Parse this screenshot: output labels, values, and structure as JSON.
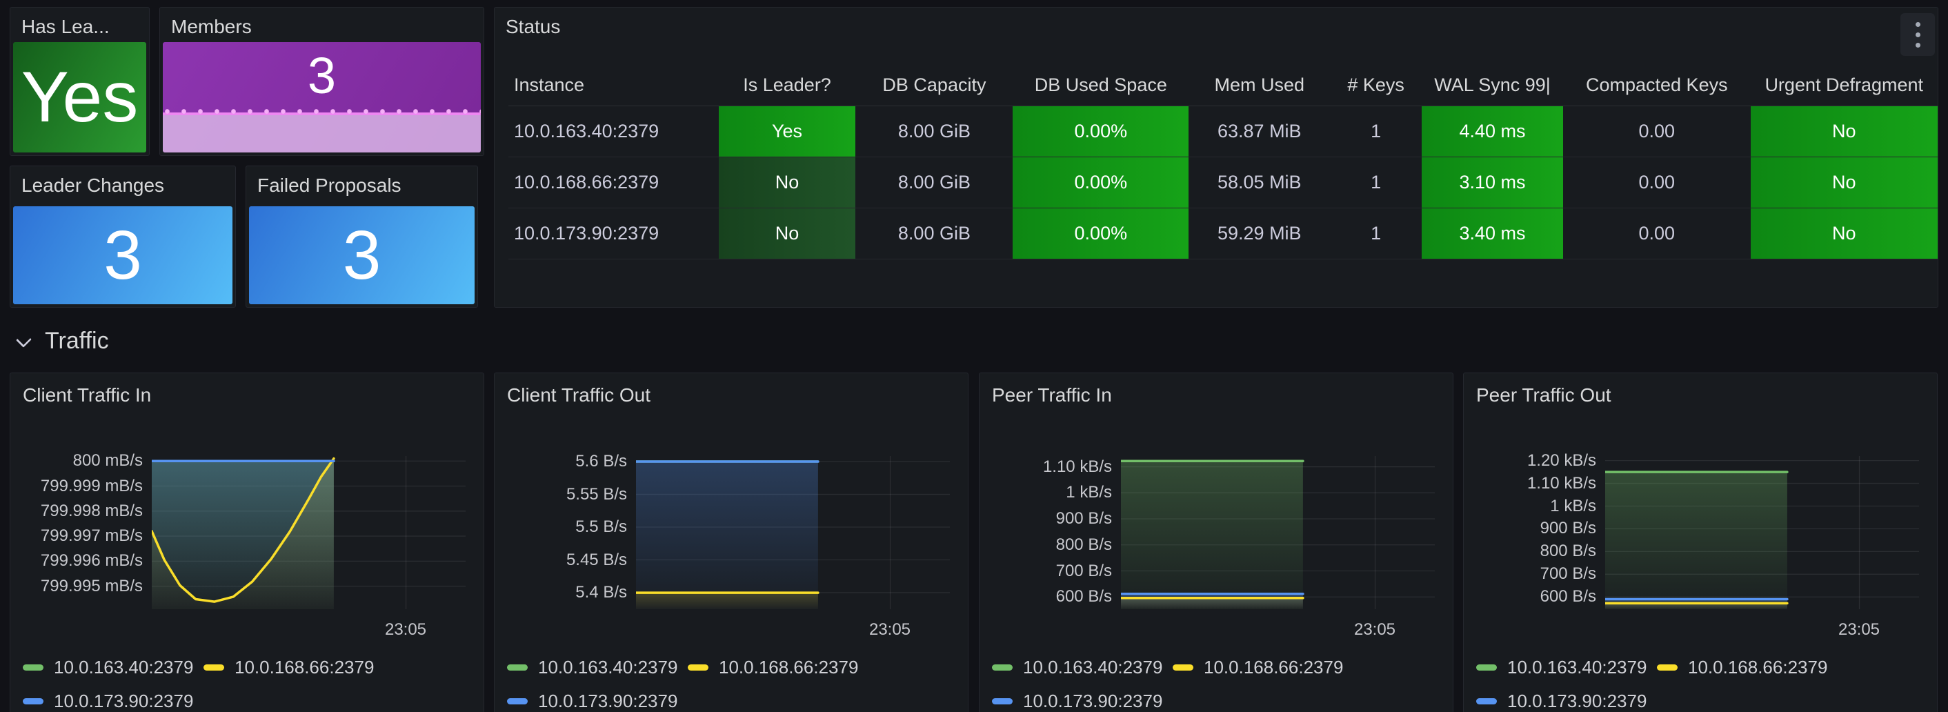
{
  "palette": {
    "series_green": "#73bf69",
    "series_yellow": "#fade2a",
    "series_blue": "#5794f2",
    "cell_bright_from": "#0d8713",
    "cell_bright_to": "#16a318",
    "cell_dark_from": "#17421e",
    "cell_dark_to": "#205428",
    "stat_green": "#2b9c31",
    "stat_blue": "#3c95e8",
    "stat_purple": "#8d35b0",
    "grid": "rgba(204,204,220,0.10)"
  },
  "panels": {
    "has_leader": {
      "title": "Has Lea...",
      "value": "Yes"
    },
    "members": {
      "title": "Members",
      "value": "3"
    },
    "leader_changes": {
      "title": "Leader Changes",
      "value": "3"
    },
    "failed_proposals": {
      "title": "Failed Proposals",
      "value": "3"
    },
    "status": {
      "title": "Status",
      "menu_icon": "kebab-menu-icon",
      "columns": [
        "Instance",
        "Is Leader?",
        "DB Capacity",
        "DB Used Space",
        "Mem Used",
        "# Keys",
        "WAL Sync 99|",
        "Compacted Keys",
        "Urgent Defragment"
      ],
      "rows": [
        [
          {
            "t": "10.0.163.40:2379"
          },
          {
            "t": "Yes",
            "bg": "bright"
          },
          {
            "t": "8.00 GiB"
          },
          {
            "t": "0.00%",
            "bg": "bright"
          },
          {
            "t": "63.87 MiB"
          },
          {
            "t": "1"
          },
          {
            "t": "4.40 ms",
            "bg": "bright"
          },
          {
            "t": "0.00"
          },
          {
            "t": "No",
            "bg": "bright"
          }
        ],
        [
          {
            "t": "10.0.168.66:2379"
          },
          {
            "t": "No",
            "bg": "dark"
          },
          {
            "t": "8.00 GiB"
          },
          {
            "t": "0.00%",
            "bg": "bright"
          },
          {
            "t": "58.05 MiB"
          },
          {
            "t": "1"
          },
          {
            "t": "3.10 ms",
            "bg": "bright"
          },
          {
            "t": "0.00"
          },
          {
            "t": "No",
            "bg": "bright"
          }
        ],
        [
          {
            "t": "10.0.173.90:2379"
          },
          {
            "t": "No",
            "bg": "dark"
          },
          {
            "t": "8.00 GiB"
          },
          {
            "t": "0.00%",
            "bg": "bright"
          },
          {
            "t": "59.29 MiB"
          },
          {
            "t": "1"
          },
          {
            "t": "3.40 ms",
            "bg": "bright"
          },
          {
            "t": "0.00"
          },
          {
            "t": "No",
            "bg": "bright"
          }
        ]
      ]
    }
  },
  "section": {
    "title": "Traffic",
    "collapsed": false
  },
  "chart_data": [
    {
      "type": "line",
      "title": "Client Traffic In",
      "unit": "mB/s",
      "ylim": [
        799.99408,
        800.0002
      ],
      "y_ticks": [
        {
          "label": "800 mB/s",
          "value": 800
        },
        {
          "label": "799.999 mB/s",
          "value": 799.999
        },
        {
          "label": "799.998 mB/s",
          "value": 799.998
        },
        {
          "label": "799.997 mB/s",
          "value": 799.997
        },
        {
          "label": "799.996 mB/s",
          "value": 799.996
        },
        {
          "label": "799.995 mB/s",
          "value": 799.995
        }
      ],
      "x_tick": "23:05",
      "vgrid_frac": 0.81,
      "data_end_frac": 0.58,
      "legend_position": "bottom",
      "series": [
        {
          "name": "10.0.163.40:2379",
          "color": "green",
          "value": 800,
          "fill": true
        },
        {
          "name": "10.0.168.66:2379",
          "color": "yellow",
          "fill": true,
          "points": [
            [
              0,
              799.9972
            ],
            [
              0.04,
              799.99605
            ],
            [
              0.09,
              799.99503
            ],
            [
              0.14,
              799.99448
            ],
            [
              0.2,
              799.99438
            ],
            [
              0.26,
              799.99458
            ],
            [
              0.32,
              799.99518
            ],
            [
              0.38,
              799.99608
            ],
            [
              0.44,
              799.99718
            ],
            [
              0.5,
              799.99848
            ],
            [
              0.54,
              799.99938
            ],
            [
              0.58,
              800.0001
            ]
          ]
        },
        {
          "name": "10.0.173.90:2379",
          "color": "blue",
          "value": 800,
          "fill": true
        }
      ]
    },
    {
      "type": "line",
      "title": "Client Traffic Out",
      "unit": "B/s",
      "ylim": [
        5.3748,
        5.6084
      ],
      "y_ticks": [
        {
          "label": "5.6 B/s",
          "value": 5.6
        },
        {
          "label": "5.55 B/s",
          "value": 5.55
        },
        {
          "label": "5.5 B/s",
          "value": 5.5
        },
        {
          "label": "5.45 B/s",
          "value": 5.45
        },
        {
          "label": "5.4 B/s",
          "value": 5.4
        }
      ],
      "x_tick": "23:05",
      "vgrid_frac": 0.81,
      "data_end_frac": 0.58,
      "legend_position": "bottom",
      "series": [
        {
          "name": "10.0.163.40:2379",
          "color": "green",
          "value": 5.6,
          "fill": false
        },
        {
          "name": "10.0.168.66:2379",
          "color": "yellow",
          "value": 5.4,
          "fill": true
        },
        {
          "name": "10.0.173.90:2379",
          "color": "blue",
          "value": 5.6,
          "fill": true
        }
      ]
    },
    {
      "type": "line",
      "title": "Peer Traffic In",
      "unit": "B/s",
      "ylim": [
        553,
        1141.2
      ],
      "y_ticks": [
        {
          "label": "1.10 kB/s",
          "value": 1100
        },
        {
          "label": "1 kB/s",
          "value": 1000
        },
        {
          "label": "900 B/s",
          "value": 900
        },
        {
          "label": "800 B/s",
          "value": 800
        },
        {
          "label": "700 B/s",
          "value": 700
        },
        {
          "label": "600 B/s",
          "value": 600
        }
      ],
      "x_tick": "23:05",
      "vgrid_frac": 0.81,
      "data_end_frac": 0.58,
      "legend_position": "bottom",
      "series": [
        {
          "name": "10.0.163.40:2379",
          "color": "green",
          "value": 1122,
          "fill": true
        },
        {
          "name": "10.0.168.66:2379",
          "color": "yellow",
          "value": 596,
          "fill": true
        },
        {
          "name": "10.0.173.90:2379",
          "color": "blue",
          "value": 612,
          "fill": true
        }
      ]
    },
    {
      "type": "line",
      "title": "Peer Traffic Out",
      "unit": "B/s",
      "ylim": [
        546,
        1220.2
      ],
      "y_ticks": [
        {
          "label": "1.20 kB/s",
          "value": 1200
        },
        {
          "label": "1.10 kB/s",
          "value": 1100
        },
        {
          "label": "1 kB/s",
          "value": 1000
        },
        {
          "label": "900 B/s",
          "value": 900
        },
        {
          "label": "800 B/s",
          "value": 800
        },
        {
          "label": "700 B/s",
          "value": 700
        },
        {
          "label": "600 B/s",
          "value": 600
        }
      ],
      "x_tick": "23:05",
      "vgrid_frac": 0.81,
      "data_end_frac": 0.58,
      "legend_position": "bottom",
      "series": [
        {
          "name": "10.0.163.40:2379",
          "color": "green",
          "value": 1150,
          "fill": true
        },
        {
          "name": "10.0.168.66:2379",
          "color": "yellow",
          "value": 572,
          "fill": true
        },
        {
          "name": "10.0.173.90:2379",
          "color": "blue",
          "value": 590,
          "fill": true
        }
      ]
    }
  ]
}
